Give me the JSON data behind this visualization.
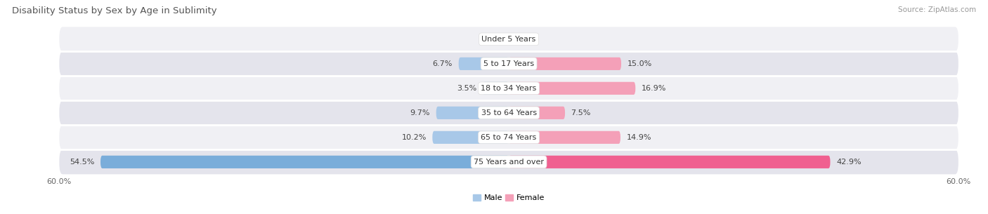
{
  "title": "Disability Status by Sex by Age in Sublimity",
  "source": "Source: ZipAtlas.com",
  "categories": [
    "Under 5 Years",
    "5 to 17 Years",
    "18 to 34 Years",
    "35 to 64 Years",
    "65 to 74 Years",
    "75 Years and over"
  ],
  "male_values": [
    0.0,
    6.7,
    3.5,
    9.7,
    10.2,
    54.5
  ],
  "female_values": [
    0.0,
    15.0,
    16.9,
    7.5,
    14.9,
    42.9
  ],
  "male_color": "#a8c8e8",
  "female_color": "#f4a0b8",
  "male_color_large": "#7aadda",
  "female_color_large": "#f06090",
  "row_bg_light": "#f0f0f4",
  "row_bg_dark": "#e4e4ec",
  "xlim": 60.0,
  "bar_height": 0.52,
  "title_fontsize": 9.5,
  "label_fontsize": 8.0,
  "value_fontsize": 8.0,
  "tick_fontsize": 8.0,
  "source_fontsize": 7.5,
  "legend_fontsize": 8.0
}
